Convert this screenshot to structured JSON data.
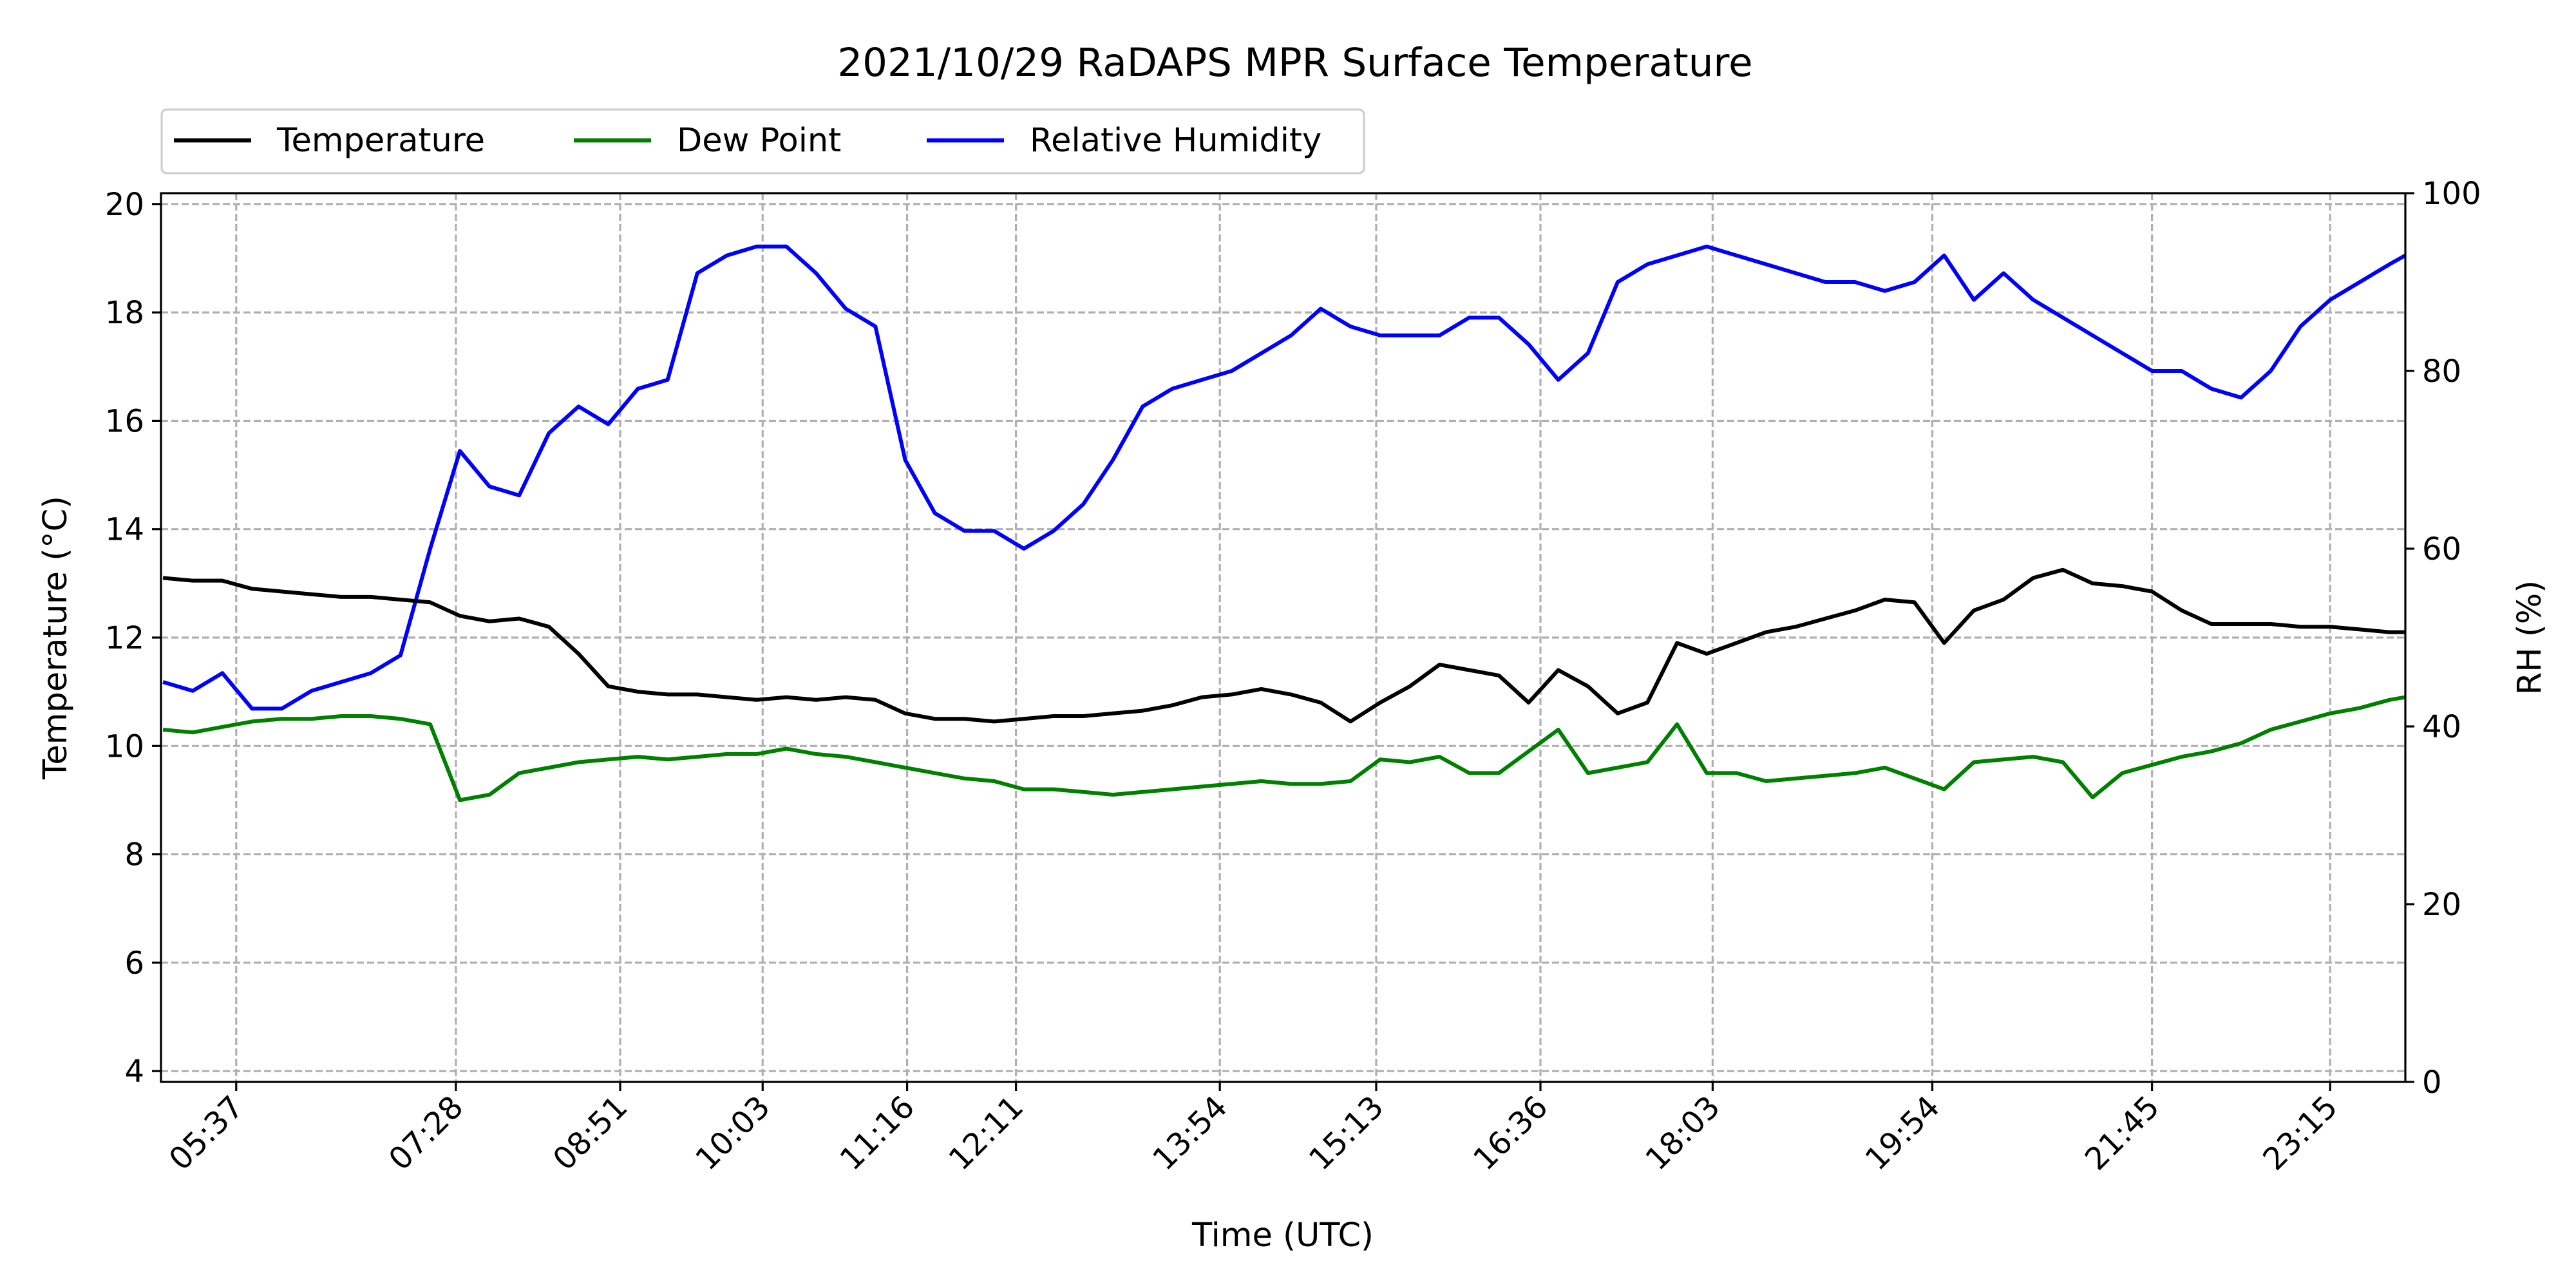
{
  "chart_data": {
    "type": "line",
    "title": "2021/10/29 RaDAPS MPR Surface Temperature",
    "xlabel": "Time (UTC)",
    "ylabel": "Temperature ($^\\circ$C)",
    "ylabel_display": "Temperature (°C)",
    "y2label": "RH (%)",
    "xlim": [
      "04:59",
      "23:53"
    ],
    "ylim": [
      3.8,
      20.2
    ],
    "y2lim": [
      0,
      100
    ],
    "x_ticks": [
      "05:37",
      "07:28",
      "08:51",
      "10:03",
      "11:16",
      "12:11",
      "13:54",
      "15:13",
      "16:36",
      "18:03",
      "19:54",
      "21:45",
      "23:15"
    ],
    "y_ticks": [
      4,
      6,
      8,
      10,
      12,
      14,
      16,
      18,
      20
    ],
    "y2_ticks": [
      0,
      20,
      40,
      60,
      80,
      100
    ],
    "grid": true,
    "legend": {
      "placement": "above-left",
      "columns": 3
    },
    "x": [
      "05:00",
      "05:15",
      "05:30",
      "05:45",
      "06:00",
      "06:15",
      "06:30",
      "06:45",
      "07:00",
      "07:15",
      "07:30",
      "07:45",
      "08:00",
      "08:15",
      "08:30",
      "08:45",
      "09:00",
      "09:15",
      "09:30",
      "09:45",
      "10:00",
      "10:15",
      "10:30",
      "10:45",
      "11:00",
      "11:15",
      "11:30",
      "11:45",
      "12:00",
      "12:15",
      "12:30",
      "12:45",
      "13:00",
      "13:15",
      "13:30",
      "13:45",
      "14:00",
      "14:15",
      "14:30",
      "14:45",
      "15:00",
      "15:15",
      "15:30",
      "15:45",
      "16:00",
      "16:15",
      "16:30",
      "16:45",
      "17:00",
      "17:15",
      "17:30",
      "17:45",
      "18:00",
      "18:15",
      "18:30",
      "18:45",
      "19:00",
      "19:15",
      "19:30",
      "19:45",
      "20:00",
      "20:15",
      "20:30",
      "20:45",
      "21:00",
      "21:15",
      "21:30",
      "21:45",
      "22:00",
      "22:15",
      "22:30",
      "22:45",
      "23:00",
      "23:15",
      "23:30",
      "23:45",
      "23:53"
    ],
    "series": [
      {
        "name": "Temperature",
        "axis": "left",
        "color": "#000000",
        "values": [
          13.1,
          13.05,
          13.05,
          12.9,
          12.85,
          12.8,
          12.75,
          12.75,
          12.7,
          12.65,
          12.4,
          12.3,
          12.35,
          12.2,
          11.7,
          11.1,
          11.0,
          10.95,
          10.95,
          10.9,
          10.85,
          10.9,
          10.85,
          10.9,
          10.85,
          10.6,
          10.5,
          10.5,
          10.45,
          10.5,
          10.55,
          10.55,
          10.6,
          10.65,
          10.75,
          10.9,
          10.95,
          11.05,
          10.95,
          10.8,
          10.45,
          10.8,
          11.1,
          11.5,
          11.4,
          11.3,
          10.8,
          11.4,
          11.1,
          10.6,
          10.8,
          11.9,
          11.7,
          11.9,
          12.1,
          12.2,
          12.35,
          12.5,
          12.7,
          12.65,
          11.9,
          12.5,
          12.7,
          13.1,
          13.25,
          13.0,
          12.95,
          12.85,
          12.5,
          12.25,
          12.25,
          12.25,
          12.2,
          12.2,
          12.15,
          12.1,
          12.1
        ]
      },
      {
        "name": "Dew Point",
        "axis": "left",
        "color": "#008000",
        "values": [
          10.3,
          10.25,
          10.35,
          10.45,
          10.5,
          10.5,
          10.55,
          10.55,
          10.5,
          10.4,
          9.0,
          9.1,
          9.5,
          9.6,
          9.7,
          9.75,
          9.8,
          9.75,
          9.8,
          9.85,
          9.85,
          9.95,
          9.85,
          9.8,
          9.7,
          9.6,
          9.5,
          9.4,
          9.35,
          9.2,
          9.2,
          9.15,
          9.1,
          9.15,
          9.2,
          9.25,
          9.3,
          9.35,
          9.3,
          9.3,
          9.35,
          9.75,
          9.7,
          9.8,
          9.5,
          9.5,
          9.9,
          10.3,
          9.5,
          9.6,
          9.7,
          10.4,
          9.5,
          9.5,
          9.35,
          9.4,
          9.45,
          9.5,
          9.6,
          9.4,
          9.2,
          9.7,
          9.75,
          9.8,
          9.7,
          9.05,
          9.5,
          9.65,
          9.8,
          9.9,
          10.05,
          10.3,
          10.45,
          10.6,
          10.7,
          10.85,
          10.9
        ]
      },
      {
        "name": "Relative Humidity",
        "axis": "right",
        "color": "#0000ff",
        "values": [
          45,
          44,
          46,
          42,
          42,
          44,
          45,
          46,
          48,
          60,
          71,
          67,
          66,
          73,
          76,
          74,
          78,
          79,
          91,
          93,
          94,
          94,
          91,
          87,
          85,
          70,
          64,
          62,
          62,
          60,
          62,
          65,
          70,
          76,
          78,
          79,
          80,
          82,
          84,
          87,
          85,
          84,
          84,
          84,
          86,
          86,
          83,
          79,
          82,
          90,
          92,
          93,
          94,
          93,
          92,
          91,
          90,
          90,
          89,
          90,
          93,
          88,
          91,
          88,
          86,
          84,
          82,
          80,
          80,
          78,
          77,
          80,
          85,
          88,
          90,
          92,
          93
        ]
      }
    ]
  }
}
